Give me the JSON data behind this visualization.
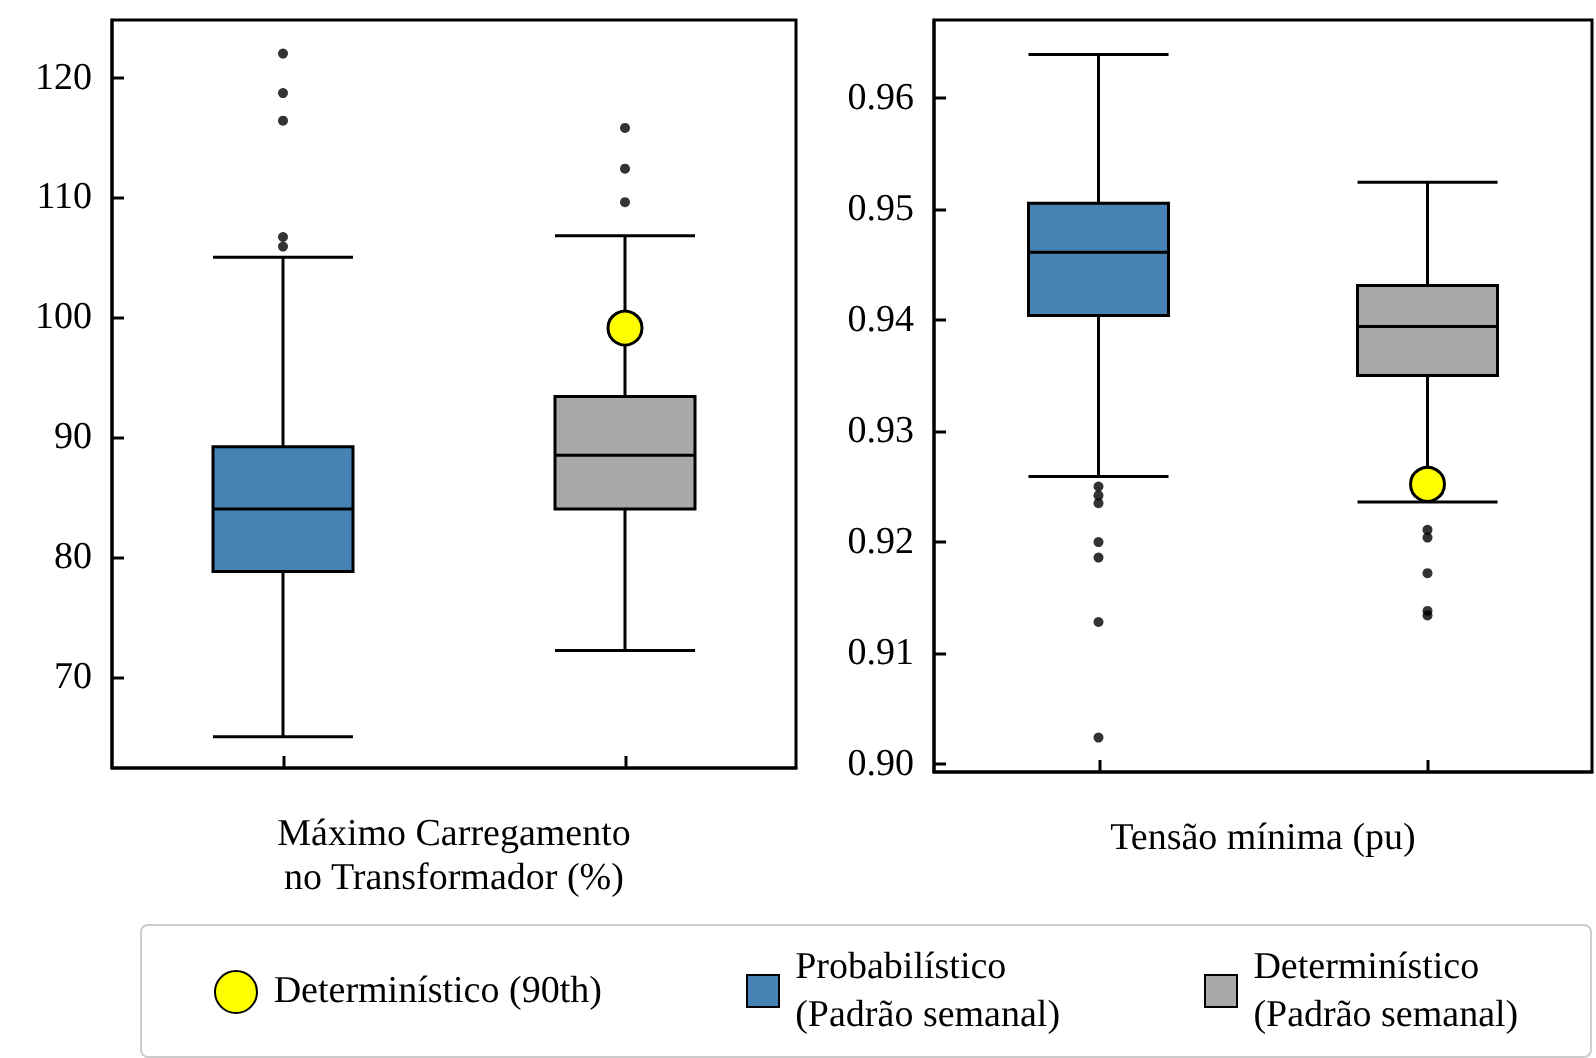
{
  "chart_data": [
    {
      "type": "box",
      "xlabel": "Máximo Carregamento\nno Transformador (%)",
      "categories": [
        null,
        null
      ],
      "ylim": [
        62.4,
        124.8
      ],
      "yticks": [
        70,
        80,
        90,
        100,
        110,
        120
      ],
      "grid": false,
      "legend": "bottom",
      "series": [
        {
          "name": "Probabilístico\n(Padrão semanal)",
          "color": "#4682b4",
          "boxes": [
            {
              "low": 65,
              "q1": 78.8,
              "median": 84,
              "q3": 89.2,
              "high": 105,
              "outliers": [
                122,
                118.7,
                116.4,
                106.7,
                105.9
              ]
            },
            null
          ]
        },
        {
          "name": "Determinístico\n(Padrão semanal)",
          "color": "#a9a9a9",
          "boxes": [
            null,
            {
              "low": 72.2,
              "q1": 84,
              "median": 88.5,
              "q3": 93.4,
              "high": 106.8,
              "outliers": [
                115.8,
                112.4,
                109.6
              ]
            }
          ]
        },
        {
          "name": "Determinístico (90th)",
          "type": "scatter",
          "color": "#ffff00",
          "marker": "circle",
          "values": [
            null,
            99.1
          ]
        }
      ]
    },
    {
      "type": "box",
      "xlabel": "Tensão mínima (pu)",
      "categories": [
        null,
        null
      ],
      "ylim": [
        0.8993,
        0.967
      ],
      "yticks": [
        {
          "value": 0.9,
          "label": "0.90"
        },
        {
          "value": 0.91,
          "label": "0.91"
        },
        {
          "value": 0.92,
          "label": "0.92"
        },
        {
          "value": 0.93,
          "label": "0.93"
        },
        {
          "value": 0.94,
          "label": "0.94"
        },
        {
          "value": 0.95,
          "label": "0.95"
        },
        {
          "value": 0.96,
          "label": "0.96"
        }
      ],
      "grid": false,
      "series": [
        {
          "color": "#4682b4",
          "boxes": [
            {
              "low": 0.9259,
              "q1": 0.9404,
              "median": 0.9461,
              "q3": 0.9505,
              "high": 0.9639,
              "outliers": [
                0.925,
                0.9242,
                0.9235,
                0.92,
                0.9186,
                0.9128,
                0.9024
              ]
            },
            null
          ]
        },
        {
          "color": "#a9a9a9",
          "boxes": [
            null,
            {
              "low": 0.9236,
              "q1": 0.935,
              "median": 0.9394,
              "q3": 0.9431,
              "high": 0.9524,
              "outliers": [
                0.9211,
                0.9204,
                0.9172,
                0.9138,
                0.9134
              ]
            }
          ]
        },
        {
          "type": "scatter",
          "color": "#ffff00",
          "marker": "circle",
          "values": [
            null,
            0.9252
          ]
        }
      ]
    }
  ]
}
